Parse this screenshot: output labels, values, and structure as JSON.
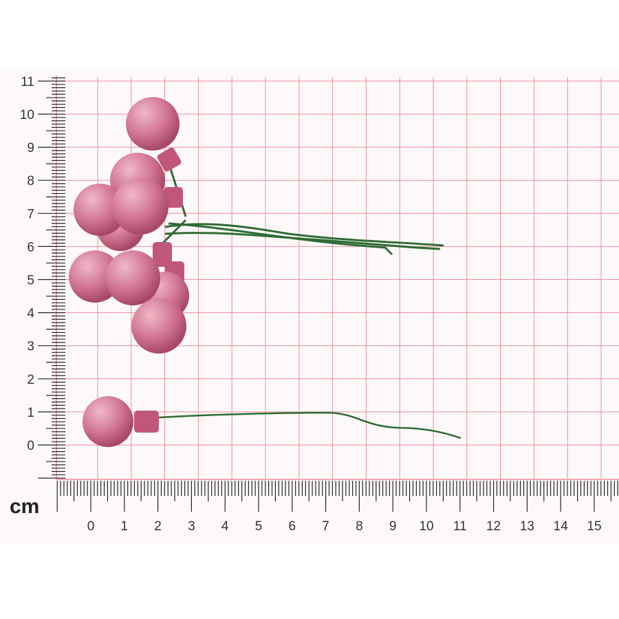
{
  "ruler": {
    "unit": "cm",
    "x_labels": [
      "0",
      "1",
      "2",
      "3",
      "4",
      "5",
      "6",
      "7",
      "8",
      "9",
      "10",
      "11",
      "12",
      "13",
      "14",
      "15"
    ],
    "y_labels": [
      "0",
      "1",
      "2",
      "3",
      "4",
      "5",
      "6",
      "7",
      "8",
      "9",
      "10",
      "11"
    ]
  },
  "colors": {
    "grid": "#f08a9a",
    "berry": "#c96a88",
    "wire": "#2e6b34",
    "background": "#fdf9fa"
  },
  "subject": "pink-berry-picks"
}
